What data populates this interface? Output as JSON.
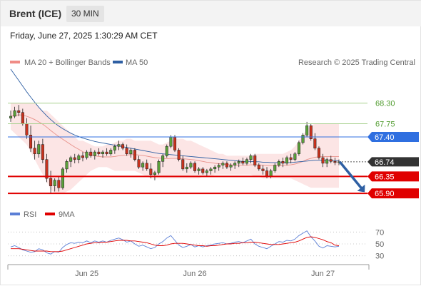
{
  "header": {
    "instrument": "Brent (ICE)",
    "timeframe": "30 MIN"
  },
  "timestamp": "Friday, June 27, 2025 1:30:29 AM CET",
  "legend": {
    "ma20_label": "MA 20 + Bollinger Bands",
    "ma50_label": "MA 50",
    "ma20_color": "#f08c86",
    "ma50_color": "#2e5fa3",
    "credit": "Research © 2025 Trading Central"
  },
  "rsi_legend": {
    "rsi_label": "RSI",
    "nine_ma_label": "9MA",
    "rsi_color": "#5b7fd6",
    "nine_ma_color": "#e00000"
  },
  "price_levels": [
    {
      "value": 68.3,
      "label": "68.30",
      "kind": "resistance",
      "color": "#4f9b2d"
    },
    {
      "value": 67.75,
      "label": "67.75",
      "kind": "resistance",
      "color": "#4f9b2d"
    },
    {
      "value": 67.4,
      "label": "67.40",
      "kind": "pivot",
      "color": "#2f6fe0"
    },
    {
      "value": 66.74,
      "label": "66.74",
      "kind": "last",
      "color": "#333333"
    },
    {
      "value": 66.35,
      "label": "66.35",
      "kind": "support",
      "color": "#e00000"
    },
    {
      "value": 65.9,
      "label": "65.90",
      "kind": "support",
      "color": "#e00000"
    }
  ],
  "chart_data": {
    "type": "candlestick",
    "ohlc": [
      [
        67.9,
        68.1,
        67.8,
        67.95
      ],
      [
        67.95,
        68.2,
        67.9,
        68.1
      ],
      [
        68.1,
        68.25,
        67.95,
        68.05
      ],
      [
        68.05,
        68.15,
        67.7,
        67.75
      ],
      [
        67.75,
        67.9,
        67.35,
        67.45
      ],
      [
        67.45,
        67.7,
        67.0,
        67.1
      ],
      [
        67.1,
        67.3,
        66.8,
        66.95
      ],
      [
        66.95,
        67.3,
        66.85,
        67.2
      ],
      [
        67.2,
        67.35,
        66.7,
        66.8
      ],
      [
        66.8,
        66.95,
        66.2,
        66.3
      ],
      [
        66.3,
        66.5,
        65.9,
        66.1
      ],
      [
        66.1,
        66.3,
        65.95,
        66.25
      ],
      [
        66.25,
        66.35,
        65.95,
        66.05
      ],
      [
        66.05,
        66.6,
        66.0,
        66.55
      ],
      [
        66.55,
        66.8,
        66.45,
        66.75
      ],
      [
        66.75,
        66.9,
        66.6,
        66.85
      ],
      [
        66.85,
        66.95,
        66.7,
        66.8
      ],
      [
        66.8,
        66.95,
        66.7,
        66.9
      ],
      [
        66.9,
        67.0,
        66.75,
        66.85
      ],
      [
        66.85,
        67.05,
        66.8,
        67.0
      ],
      [
        67.0,
        67.1,
        66.85,
        66.9
      ],
      [
        66.9,
        67.05,
        66.8,
        67.0
      ],
      [
        67.0,
        67.1,
        66.9,
        66.95
      ],
      [
        66.95,
        67.05,
        66.85,
        67.0
      ],
      [
        67.0,
        67.1,
        66.9,
        66.95
      ],
      [
        66.95,
        67.1,
        66.9,
        67.05
      ],
      [
        67.05,
        67.2,
        66.95,
        67.15
      ],
      [
        67.15,
        67.3,
        67.05,
        67.2
      ],
      [
        67.2,
        67.25,
        67.05,
        67.1
      ],
      [
        67.1,
        67.2,
        66.9,
        66.95
      ],
      [
        66.95,
        67.1,
        66.85,
        67.05
      ],
      [
        67.05,
        67.1,
        66.75,
        66.8
      ],
      [
        66.8,
        66.9,
        66.55,
        66.6
      ],
      [
        66.6,
        66.75,
        66.5,
        66.7
      ],
      [
        66.7,
        66.8,
        66.5,
        66.55
      ],
      [
        66.55,
        66.7,
        66.3,
        66.4
      ],
      [
        66.4,
        66.5,
        66.25,
        66.45
      ],
      [
        66.45,
        66.8,
        66.4,
        66.75
      ],
      [
        66.75,
        66.95,
        66.6,
        66.9
      ],
      [
        66.9,
        67.2,
        66.85,
        67.15
      ],
      [
        67.15,
        67.45,
        67.1,
        67.4
      ],
      [
        67.4,
        67.45,
        67.0,
        67.05
      ],
      [
        67.05,
        67.1,
        66.75,
        66.8
      ],
      [
        66.8,
        66.9,
        66.5,
        66.55
      ],
      [
        66.55,
        66.7,
        66.45,
        66.6
      ],
      [
        66.6,
        66.75,
        66.55,
        66.7
      ],
      [
        66.7,
        66.75,
        66.45,
        66.5
      ],
      [
        66.5,
        66.6,
        66.4,
        66.55
      ],
      [
        66.55,
        66.6,
        66.4,
        66.45
      ],
      [
        66.45,
        66.55,
        66.35,
        66.5
      ],
      [
        66.5,
        66.6,
        66.4,
        66.55
      ],
      [
        66.55,
        66.65,
        66.45,
        66.6
      ],
      [
        66.6,
        66.7,
        66.5,
        66.65
      ],
      [
        66.65,
        66.75,
        66.55,
        66.7
      ],
      [
        66.7,
        66.75,
        66.55,
        66.6
      ],
      [
        66.6,
        66.7,
        66.5,
        66.65
      ],
      [
        66.65,
        66.75,
        66.55,
        66.7
      ],
      [
        66.7,
        66.8,
        66.6,
        66.75
      ],
      [
        66.75,
        66.85,
        66.65,
        66.7
      ],
      [
        66.7,
        66.85,
        66.65,
        66.8
      ],
      [
        66.8,
        66.95,
        66.7,
        66.9
      ],
      [
        66.9,
        66.95,
        66.6,
        66.65
      ],
      [
        66.65,
        66.7,
        66.5,
        66.55
      ],
      [
        66.55,
        66.65,
        66.4,
        66.5
      ],
      [
        66.5,
        66.6,
        66.3,
        66.35
      ],
      [
        66.35,
        66.55,
        66.3,
        66.5
      ],
      [
        66.5,
        66.7,
        66.45,
        66.65
      ],
      [
        66.65,
        66.8,
        66.6,
        66.75
      ],
      [
        66.75,
        66.85,
        66.6,
        66.7
      ],
      [
        66.7,
        66.9,
        66.65,
        66.85
      ],
      [
        66.85,
        66.95,
        66.7,
        66.8
      ],
      [
        66.8,
        67.0,
        66.75,
        66.95
      ],
      [
        66.95,
        67.3,
        66.9,
        67.25
      ],
      [
        67.25,
        67.5,
        67.2,
        67.45
      ],
      [
        67.45,
        67.8,
        67.4,
        67.7
      ],
      [
        67.7,
        67.75,
        67.3,
        67.35
      ],
      [
        67.35,
        67.5,
        67.05,
        67.1
      ],
      [
        67.1,
        67.15,
        66.8,
        66.85
      ],
      [
        66.85,
        66.95,
        66.6,
        66.7
      ],
      [
        66.7,
        66.85,
        66.6,
        66.8
      ],
      [
        66.8,
        66.9,
        66.7,
        66.75
      ],
      [
        66.75,
        66.85,
        66.65,
        66.72
      ],
      [
        66.72,
        66.8,
        66.65,
        66.74
      ]
    ],
    "ma20": [
      67.95,
      67.97,
      67.99,
      67.98,
      67.95,
      67.91,
      67.86,
      67.8,
      67.74,
      67.66,
      67.57,
      67.49,
      67.41,
      67.34,
      67.27,
      67.2,
      67.13,
      67.07,
      67.01,
      66.96,
      66.92,
      66.9,
      66.88,
      66.87,
      66.87,
      66.87,
      66.88,
      66.9,
      66.91,
      66.92,
      66.93,
      66.93,
      66.92,
      66.91,
      66.89,
      66.87,
      66.85,
      66.84,
      66.83,
      66.82,
      66.83,
      66.83,
      66.83,
      66.82,
      66.81,
      66.8,
      66.79,
      66.77,
      66.75,
      66.73,
      66.72,
      66.7,
      66.69,
      66.68,
      66.67,
      66.66,
      66.65,
      66.65,
      66.65,
      66.65,
      66.66,
      66.66,
      66.66,
      66.65,
      66.64,
      66.64,
      66.64,
      66.64,
      66.64,
      66.65,
      66.66,
      66.68,
      66.71,
      66.75,
      66.8,
      66.83,
      66.86,
      66.87,
      66.88,
      66.88,
      66.88,
      66.88,
      66.88
    ],
    "bb_upper": [
      68.3,
      68.3,
      68.3,
      68.3,
      68.3,
      68.3,
      68.3,
      68.2,
      68.1,
      68.1,
      68.0,
      67.9,
      67.8,
      67.7,
      67.6,
      67.5,
      67.4,
      67.3,
      67.3,
      67.25,
      67.2,
      67.15,
      67.15,
      67.15,
      67.2,
      67.2,
      67.25,
      67.3,
      67.3,
      67.35,
      67.35,
      67.3,
      67.3,
      67.3,
      67.3,
      67.3,
      67.25,
      67.2,
      67.2,
      67.25,
      67.3,
      67.35,
      67.35,
      67.35,
      67.3,
      67.3,
      67.25,
      67.2,
      67.15,
      67.1,
      67.05,
      67.0,
      66.95,
      66.95,
      66.9,
      66.9,
      66.9,
      66.9,
      66.9,
      66.9,
      66.9,
      66.95,
      66.95,
      66.95,
      66.95,
      66.95,
      66.95,
      66.95,
      66.95,
      67.0,
      67.05,
      67.15,
      67.3,
      67.45,
      67.6,
      67.7,
      67.75,
      67.75,
      67.75,
      67.75,
      67.75,
      67.75,
      67.75
    ],
    "bb_lower": [
      67.6,
      67.5,
      67.4,
      67.3,
      67.2,
      67.0,
      66.8,
      66.6,
      66.4,
      66.2,
      66.0,
      65.9,
      65.9,
      65.9,
      65.95,
      66.0,
      66.1,
      66.2,
      66.3,
      66.4,
      66.5,
      66.55,
      66.6,
      66.6,
      66.6,
      66.55,
      66.5,
      66.5,
      66.5,
      66.5,
      66.5,
      66.5,
      66.45,
      66.4,
      66.35,
      66.3,
      66.3,
      66.3,
      66.3,
      66.3,
      66.3,
      66.3,
      66.3,
      66.3,
      66.3,
      66.3,
      66.3,
      66.3,
      66.35,
      66.35,
      66.35,
      66.4,
      66.4,
      66.4,
      66.4,
      66.4,
      66.4,
      66.4,
      66.4,
      66.4,
      66.4,
      66.35,
      66.35,
      66.3,
      66.3,
      66.3,
      66.3,
      66.3,
      66.3,
      66.3,
      66.3,
      66.25,
      66.2,
      66.15,
      66.1,
      66.05,
      66.05,
      66.05,
      66.05,
      66.05,
      66.05,
      66.05,
      66.05
    ],
    "ma50": [
      69.2,
      69.05,
      68.9,
      68.75,
      68.6,
      68.46,
      68.32,
      68.19,
      68.07,
      67.96,
      67.86,
      67.77,
      67.69,
      67.62,
      67.56,
      67.5,
      67.45,
      67.41,
      67.37,
      67.34,
      67.31,
      67.28,
      67.26,
      67.24,
      67.22,
      67.2,
      67.18,
      67.16,
      67.14,
      67.12,
      67.1,
      67.08,
      67.06,
      67.04,
      67.02,
      67.0,
      66.98,
      66.96,
      66.95,
      66.94,
      66.93,
      66.92,
      66.91,
      66.9,
      66.89,
      66.88,
      66.87,
      66.86,
      66.85,
      66.84,
      66.83,
      66.82,
      66.81,
      66.8,
      66.79,
      66.78,
      66.77,
      66.76,
      66.75,
      66.75,
      66.75,
      66.74,
      66.74,
      66.73,
      66.73,
      66.72,
      66.72,
      66.72,
      66.72,
      66.72,
      66.72,
      66.73,
      66.74,
      66.75,
      66.76,
      66.77,
      66.78,
      66.78,
      66.78,
      66.78,
      66.78,
      66.77,
      66.77
    ],
    "rsi": [
      45,
      47,
      44,
      40,
      38,
      36,
      37,
      42,
      40,
      35,
      33,
      37,
      36,
      44,
      49,
      52,
      51,
      53,
      52,
      55,
      52,
      55,
      53,
      55,
      53,
      56,
      58,
      60,
      57,
      53,
      55,
      50,
      46,
      48,
      45,
      42,
      44,
      50,
      54,
      60,
      64,
      56,
      48,
      44,
      46,
      49,
      45,
      47,
      45,
      47,
      48,
      50,
      51,
      52,
      50,
      51,
      53,
      54,
      52,
      55,
      58,
      50,
      46,
      44,
      42,
      46,
      50,
      54,
      53,
      56,
      55,
      58,
      64,
      68,
      72,
      62,
      55,
      46,
      43,
      47,
      46,
      45,
      46
    ],
    "rsi_9ma": [
      42,
      42,
      42,
      41,
      40,
      39,
      38,
      38,
      38,
      38,
      37,
      37,
      37,
      38,
      40,
      42,
      44,
      46,
      48,
      50,
      51,
      52,
      52,
      53,
      53,
      54,
      55,
      56,
      56,
      56,
      55,
      55,
      54,
      53,
      52,
      50,
      48,
      47,
      47,
      48,
      50,
      51,
      51,
      51,
      50,
      49,
      48,
      47,
      47,
      46,
      47,
      47,
      48,
      49,
      50,
      50,
      51,
      51,
      52,
      52,
      53,
      53,
      52,
      51,
      50,
      49,
      49,
      49,
      50,
      51,
      52,
      53,
      55,
      58,
      61,
      62,
      61,
      59,
      57,
      54,
      52,
      48,
      47
    ],
    "y_range": [
      65.6,
      69.2
    ],
    "x_ticks": [
      {
        "label": "Jun 25",
        "index": 19
      },
      {
        "label": "Jun 26",
        "index": 46
      },
      {
        "label": "Jun 27",
        "index": 78
      }
    ],
    "rsi_ticks": [
      70,
      50,
      30
    ]
  }
}
